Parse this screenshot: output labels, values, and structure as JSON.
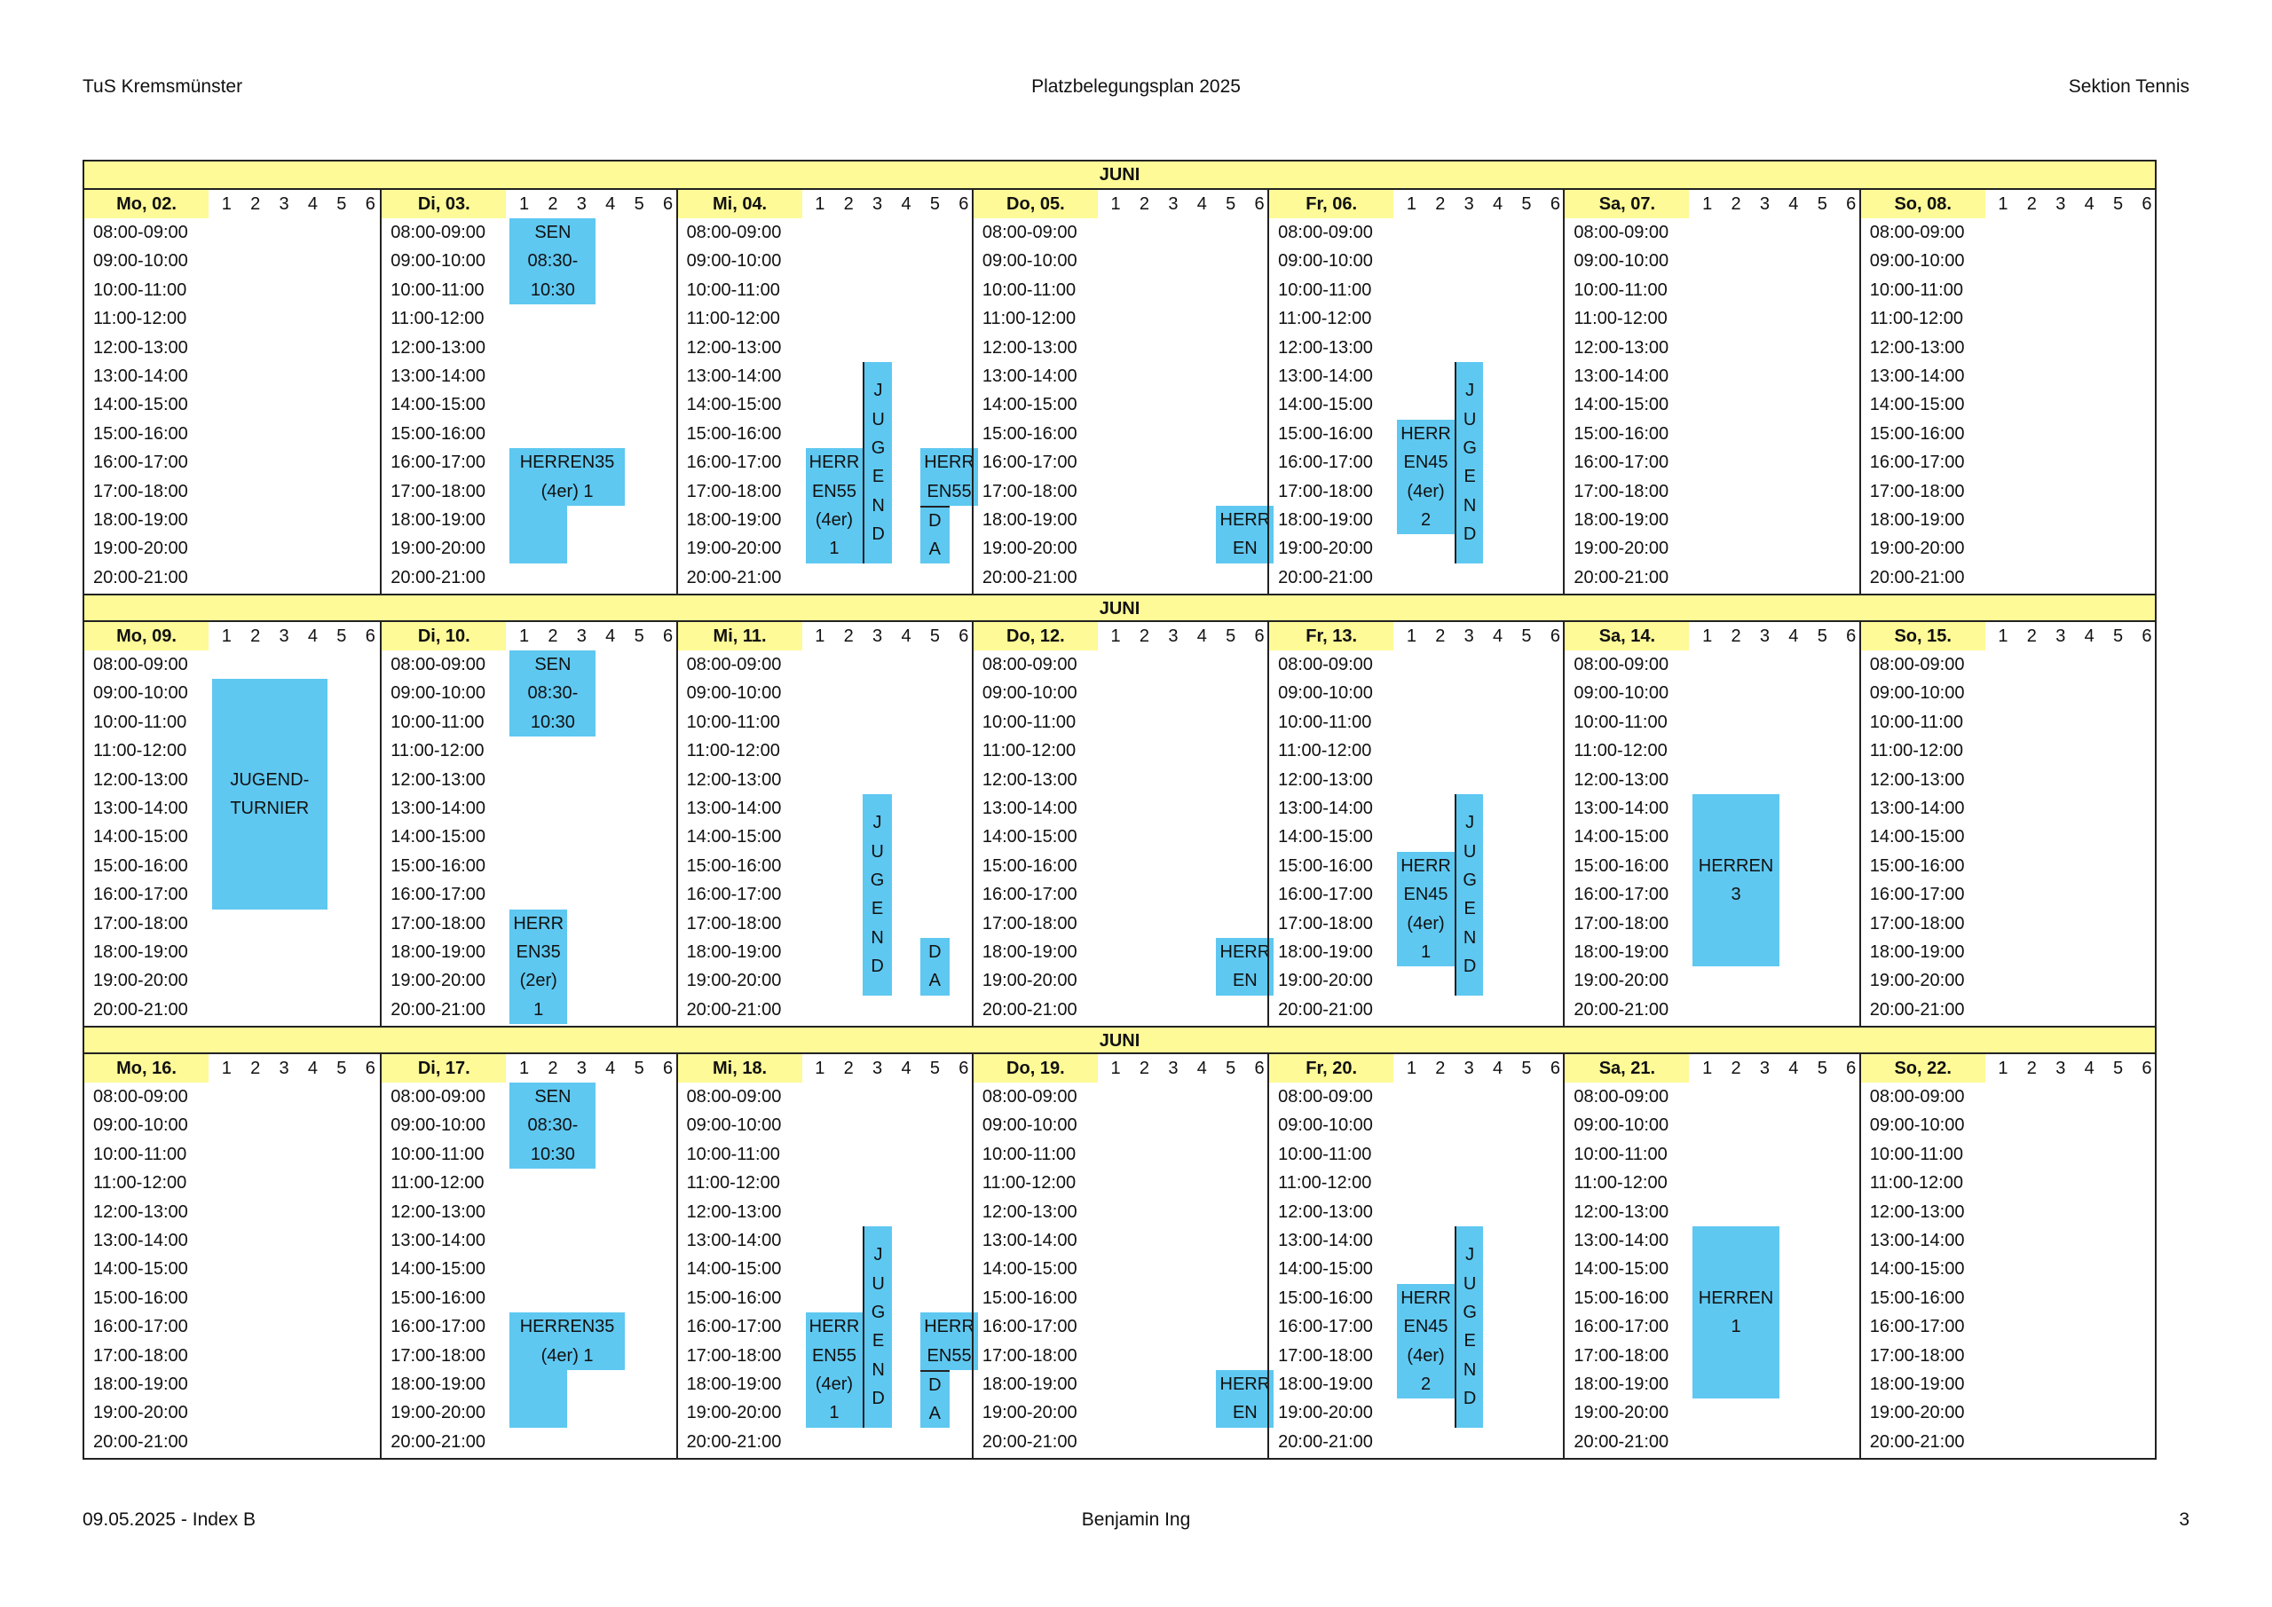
{
  "header": {
    "left": "TuS Kremsmünster",
    "center": "Platzbelegungsplan 2025",
    "right": "Sektion Tennis"
  },
  "footer": {
    "left": "09.05.2025 - Index B",
    "center": "Benjamin Ing",
    "right": "3"
  },
  "colors": {
    "yellow": "#fdfa97",
    "booking": "#5ec8f1"
  },
  "courts": [
    "1",
    "2",
    "3",
    "4",
    "5",
    "6"
  ],
  "time_slots": [
    "08:00-09:00",
    "09:00-10:00",
    "10:00-11:00",
    "11:00-12:00",
    "12:00-13:00",
    "13:00-14:00",
    "14:00-15:00",
    "15:00-16:00",
    "16:00-17:00",
    "17:00-18:00",
    "18:00-19:00",
    "19:00-20:00",
    "20:00-21:00"
  ],
  "weeks": [
    {
      "month": "JUNI",
      "days": [
        "Mo, 02.",
        "Di, 03.",
        "Mi, 04.",
        "Do, 05.",
        "Fr, 06.",
        "Sa, 07.",
        "So, 08."
      ],
      "bookings": [
        {
          "day": 1,
          "court_from": 1,
          "court_to": 3,
          "from": "08:00",
          "to": "11:00",
          "lines": [
            "SEN",
            "08:30-",
            "10:30"
          ]
        },
        {
          "day": 1,
          "court_from": 1,
          "court_to": 4,
          "from": "16:00",
          "to": "18:00",
          "lines": [
            "HERREN35",
            "(4er) 1"
          ]
        },
        {
          "day": 1,
          "court_from": 1,
          "court_to": 2,
          "from": "18:00",
          "to": "20:00",
          "lines": []
        },
        {
          "day": 2,
          "court_from": 1,
          "court_to": 2,
          "from": "16:00",
          "to": "20:00",
          "lines": [
            "HERR",
            "EN55",
            "(4er)",
            "1"
          ]
        },
        {
          "day": 2,
          "court_from": 3,
          "court_to": 3,
          "from": "13:00",
          "to": "20:00",
          "lines": [
            "J",
            "U",
            "G",
            "E",
            "N",
            "D"
          ],
          "divider": "left"
        },
        {
          "day": 2,
          "court_from": 5,
          "court_to": 6,
          "from": "16:00",
          "to": "18:00",
          "lines": [
            "HERR",
            "EN55"
          ]
        },
        {
          "day": 2,
          "court_from": 5,
          "court_to": 5,
          "from": "18:00",
          "to": "20:00",
          "lines": [
            "D",
            "A"
          ],
          "divider": "top"
        },
        {
          "day": 3,
          "court_from": 5,
          "court_to": 6,
          "from": "18:00",
          "to": "20:00",
          "lines": [
            "HERR",
            "EN"
          ]
        },
        {
          "day": 4,
          "court_from": 1,
          "court_to": 2,
          "from": "15:00",
          "to": "19:00",
          "lines": [
            "HERR",
            "EN45",
            "(4er)",
            "2"
          ]
        },
        {
          "day": 4,
          "court_from": 3,
          "court_to": 3,
          "from": "13:00",
          "to": "20:00",
          "lines": [
            "J",
            "U",
            "G",
            "E",
            "N",
            "D"
          ],
          "divider": "left"
        }
      ]
    },
    {
      "month": "JUNI",
      "days": [
        "Mo, 09.",
        "Di, 10.",
        "Mi, 11.",
        "Do, 12.",
        "Fr, 13.",
        "Sa, 14.",
        "So, 15."
      ],
      "bookings": [
        {
          "day": 0,
          "court_from": 1,
          "court_to": 4,
          "from": "09:00",
          "to": "17:00",
          "lines": [
            "JUGEND-",
            "TURNIER"
          ]
        },
        {
          "day": 1,
          "court_from": 1,
          "court_to": 3,
          "from": "08:00",
          "to": "11:00",
          "lines": [
            "SEN",
            "08:30-",
            "10:30"
          ]
        },
        {
          "day": 1,
          "court_from": 1,
          "court_to": 2,
          "from": "17:00",
          "to": "21:00",
          "lines": [
            "HERR",
            "EN35",
            "(2er)",
            "1"
          ]
        },
        {
          "day": 2,
          "court_from": 3,
          "court_to": 3,
          "from": "13:00",
          "to": "20:00",
          "lines": [
            "J",
            "U",
            "G",
            "E",
            "N",
            "D"
          ]
        },
        {
          "day": 2,
          "court_from": 5,
          "court_to": 5,
          "from": "18:00",
          "to": "20:00",
          "lines": [
            "D",
            "A"
          ]
        },
        {
          "day": 3,
          "court_from": 5,
          "court_to": 6,
          "from": "18:00",
          "to": "20:00",
          "lines": [
            "HERR",
            "EN"
          ]
        },
        {
          "day": 4,
          "court_from": 1,
          "court_to": 2,
          "from": "15:00",
          "to": "19:00",
          "lines": [
            "HERR",
            "EN45",
            "(4er)",
            "1"
          ]
        },
        {
          "day": 4,
          "court_from": 3,
          "court_to": 3,
          "from": "13:00",
          "to": "20:00",
          "lines": [
            "J",
            "U",
            "G",
            "E",
            "N",
            "D"
          ],
          "divider": "left"
        },
        {
          "day": 5,
          "court_from": 1,
          "court_to": 3,
          "from": "13:00",
          "to": "19:00",
          "lines": [
            "HERREN",
            "3"
          ]
        }
      ]
    },
    {
      "month": "JUNI",
      "days": [
        "Mo, 16.",
        "Di, 17.",
        "Mi, 18.",
        "Do, 19.",
        "Fr, 20.",
        "Sa, 21.",
        "So, 22."
      ],
      "bookings": [
        {
          "day": 1,
          "court_from": 1,
          "court_to": 3,
          "from": "08:00",
          "to": "11:00",
          "lines": [
            "SEN",
            "08:30-",
            "10:30"
          ]
        },
        {
          "day": 1,
          "court_from": 1,
          "court_to": 4,
          "from": "16:00",
          "to": "18:00",
          "lines": [
            "HERREN35",
            "(4er) 1"
          ]
        },
        {
          "day": 1,
          "court_from": 1,
          "court_to": 2,
          "from": "18:00",
          "to": "20:00",
          "lines": []
        },
        {
          "day": 2,
          "court_from": 1,
          "court_to": 2,
          "from": "16:00",
          "to": "20:00",
          "lines": [
            "HERR",
            "EN55",
            "(4er)",
            "1"
          ]
        },
        {
          "day": 2,
          "court_from": 3,
          "court_to": 3,
          "from": "13:00",
          "to": "20:00",
          "lines": [
            "J",
            "U",
            "G",
            "E",
            "N",
            "D"
          ],
          "divider": "left"
        },
        {
          "day": 2,
          "court_from": 5,
          "court_to": 6,
          "from": "16:00",
          "to": "18:00",
          "lines": [
            "HERR",
            "EN55"
          ]
        },
        {
          "day": 2,
          "court_from": 5,
          "court_to": 5,
          "from": "18:00",
          "to": "20:00",
          "lines": [
            "D",
            "A"
          ],
          "divider": "top"
        },
        {
          "day": 3,
          "court_from": 5,
          "court_to": 6,
          "from": "18:00",
          "to": "20:00",
          "lines": [
            "HERR",
            "EN"
          ]
        },
        {
          "day": 4,
          "court_from": 1,
          "court_to": 2,
          "from": "15:00",
          "to": "19:00",
          "lines": [
            "HERR",
            "EN45",
            "(4er)",
            "2"
          ]
        },
        {
          "day": 4,
          "court_from": 3,
          "court_to": 3,
          "from": "13:00",
          "to": "20:00",
          "lines": [
            "J",
            "U",
            "G",
            "E",
            "N",
            "D"
          ],
          "divider": "left"
        },
        {
          "day": 5,
          "court_from": 1,
          "court_to": 3,
          "from": "13:00",
          "to": "19:00",
          "lines": [
            "HERREN",
            "1"
          ]
        }
      ]
    }
  ]
}
